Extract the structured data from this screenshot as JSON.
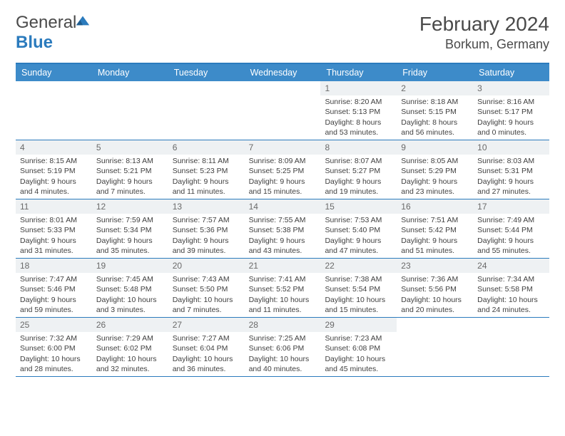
{
  "logo": {
    "word1": "General",
    "word2": "Blue"
  },
  "title": "February 2024",
  "location": "Borkum, Germany",
  "colors": {
    "accent": "#3d8bc9",
    "rule": "#2b7bbd",
    "daynum_bg": "#eef1f3",
    "text": "#404040"
  },
  "daysOfWeek": [
    "Sunday",
    "Monday",
    "Tuesday",
    "Wednesday",
    "Thursday",
    "Friday",
    "Saturday"
  ],
  "weeks": [
    [
      {
        "n": "",
        "sr": "",
        "ss": "",
        "dl": ""
      },
      {
        "n": "",
        "sr": "",
        "ss": "",
        "dl": ""
      },
      {
        "n": "",
        "sr": "",
        "ss": "",
        "dl": ""
      },
      {
        "n": "",
        "sr": "",
        "ss": "",
        "dl": ""
      },
      {
        "n": "1",
        "sr": "Sunrise: 8:20 AM",
        "ss": "Sunset: 5:13 PM",
        "dl": "Daylight: 8 hours and 53 minutes."
      },
      {
        "n": "2",
        "sr": "Sunrise: 8:18 AM",
        "ss": "Sunset: 5:15 PM",
        "dl": "Daylight: 8 hours and 56 minutes."
      },
      {
        "n": "3",
        "sr": "Sunrise: 8:16 AM",
        "ss": "Sunset: 5:17 PM",
        "dl": "Daylight: 9 hours and 0 minutes."
      }
    ],
    [
      {
        "n": "4",
        "sr": "Sunrise: 8:15 AM",
        "ss": "Sunset: 5:19 PM",
        "dl": "Daylight: 9 hours and 4 minutes."
      },
      {
        "n": "5",
        "sr": "Sunrise: 8:13 AM",
        "ss": "Sunset: 5:21 PM",
        "dl": "Daylight: 9 hours and 7 minutes."
      },
      {
        "n": "6",
        "sr": "Sunrise: 8:11 AM",
        "ss": "Sunset: 5:23 PM",
        "dl": "Daylight: 9 hours and 11 minutes."
      },
      {
        "n": "7",
        "sr": "Sunrise: 8:09 AM",
        "ss": "Sunset: 5:25 PM",
        "dl": "Daylight: 9 hours and 15 minutes."
      },
      {
        "n": "8",
        "sr": "Sunrise: 8:07 AM",
        "ss": "Sunset: 5:27 PM",
        "dl": "Daylight: 9 hours and 19 minutes."
      },
      {
        "n": "9",
        "sr": "Sunrise: 8:05 AM",
        "ss": "Sunset: 5:29 PM",
        "dl": "Daylight: 9 hours and 23 minutes."
      },
      {
        "n": "10",
        "sr": "Sunrise: 8:03 AM",
        "ss": "Sunset: 5:31 PM",
        "dl": "Daylight: 9 hours and 27 minutes."
      }
    ],
    [
      {
        "n": "11",
        "sr": "Sunrise: 8:01 AM",
        "ss": "Sunset: 5:33 PM",
        "dl": "Daylight: 9 hours and 31 minutes."
      },
      {
        "n": "12",
        "sr": "Sunrise: 7:59 AM",
        "ss": "Sunset: 5:34 PM",
        "dl": "Daylight: 9 hours and 35 minutes."
      },
      {
        "n": "13",
        "sr": "Sunrise: 7:57 AM",
        "ss": "Sunset: 5:36 PM",
        "dl": "Daylight: 9 hours and 39 minutes."
      },
      {
        "n": "14",
        "sr": "Sunrise: 7:55 AM",
        "ss": "Sunset: 5:38 PM",
        "dl": "Daylight: 9 hours and 43 minutes."
      },
      {
        "n": "15",
        "sr": "Sunrise: 7:53 AM",
        "ss": "Sunset: 5:40 PM",
        "dl": "Daylight: 9 hours and 47 minutes."
      },
      {
        "n": "16",
        "sr": "Sunrise: 7:51 AM",
        "ss": "Sunset: 5:42 PM",
        "dl": "Daylight: 9 hours and 51 minutes."
      },
      {
        "n": "17",
        "sr": "Sunrise: 7:49 AM",
        "ss": "Sunset: 5:44 PM",
        "dl": "Daylight: 9 hours and 55 minutes."
      }
    ],
    [
      {
        "n": "18",
        "sr": "Sunrise: 7:47 AM",
        "ss": "Sunset: 5:46 PM",
        "dl": "Daylight: 9 hours and 59 minutes."
      },
      {
        "n": "19",
        "sr": "Sunrise: 7:45 AM",
        "ss": "Sunset: 5:48 PM",
        "dl": "Daylight: 10 hours and 3 minutes."
      },
      {
        "n": "20",
        "sr": "Sunrise: 7:43 AM",
        "ss": "Sunset: 5:50 PM",
        "dl": "Daylight: 10 hours and 7 minutes."
      },
      {
        "n": "21",
        "sr": "Sunrise: 7:41 AM",
        "ss": "Sunset: 5:52 PM",
        "dl": "Daylight: 10 hours and 11 minutes."
      },
      {
        "n": "22",
        "sr": "Sunrise: 7:38 AM",
        "ss": "Sunset: 5:54 PM",
        "dl": "Daylight: 10 hours and 15 minutes."
      },
      {
        "n": "23",
        "sr": "Sunrise: 7:36 AM",
        "ss": "Sunset: 5:56 PM",
        "dl": "Daylight: 10 hours and 20 minutes."
      },
      {
        "n": "24",
        "sr": "Sunrise: 7:34 AM",
        "ss": "Sunset: 5:58 PM",
        "dl": "Daylight: 10 hours and 24 minutes."
      }
    ],
    [
      {
        "n": "25",
        "sr": "Sunrise: 7:32 AM",
        "ss": "Sunset: 6:00 PM",
        "dl": "Daylight: 10 hours and 28 minutes."
      },
      {
        "n": "26",
        "sr": "Sunrise: 7:29 AM",
        "ss": "Sunset: 6:02 PM",
        "dl": "Daylight: 10 hours and 32 minutes."
      },
      {
        "n": "27",
        "sr": "Sunrise: 7:27 AM",
        "ss": "Sunset: 6:04 PM",
        "dl": "Daylight: 10 hours and 36 minutes."
      },
      {
        "n": "28",
        "sr": "Sunrise: 7:25 AM",
        "ss": "Sunset: 6:06 PM",
        "dl": "Daylight: 10 hours and 40 minutes."
      },
      {
        "n": "29",
        "sr": "Sunrise: 7:23 AM",
        "ss": "Sunset: 6:08 PM",
        "dl": "Daylight: 10 hours and 45 minutes."
      },
      {
        "n": "",
        "sr": "",
        "ss": "",
        "dl": ""
      },
      {
        "n": "",
        "sr": "",
        "ss": "",
        "dl": ""
      }
    ]
  ]
}
